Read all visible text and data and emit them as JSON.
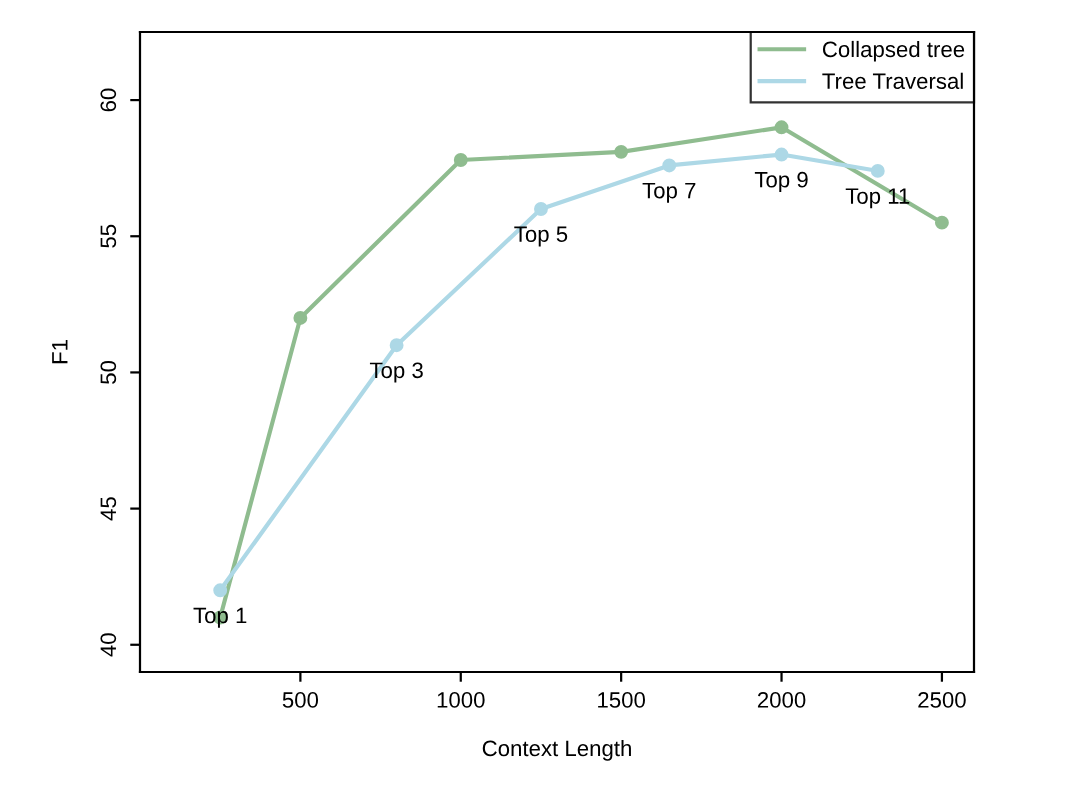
{
  "chart_data": {
    "type": "line",
    "xlabel": "Context Length",
    "ylabel": "F1",
    "xlim": [
      0,
      2600
    ],
    "ylim": [
      39,
      62.5
    ],
    "xticks": [
      500,
      1000,
      1500,
      2000,
      2500
    ],
    "yticks": [
      40,
      45,
      50,
      55,
      60
    ],
    "grid": false,
    "legend": "top right",
    "marker": "circle",
    "line_style": "solid",
    "series": [
      {
        "name": "Collapsed tree",
        "color": "#8fbc8f",
        "x": [
          250,
          500,
          1000,
          1500,
          2000,
          2500
        ],
        "values": [
          41,
          52,
          57.8,
          58.1,
          59,
          55.5
        ]
      },
      {
        "name": "Tree Traversal",
        "color": "#add8e6",
        "x": [
          250,
          800,
          1250,
          1650,
          2000,
          2300
        ],
        "values": [
          42,
          51,
          56,
          57.6,
          58,
          57.4
        ]
      }
    ],
    "annotations": [
      {
        "text": "Top 1",
        "x": 250,
        "y": 42
      },
      {
        "text": "Top 3",
        "x": 800,
        "y": 51
      },
      {
        "text": "Top 5",
        "x": 1250,
        "y": 56
      },
      {
        "text": "Top 7",
        "x": 1650,
        "y": 57.6
      },
      {
        "text": "Top 9",
        "x": 2000,
        "y": 58
      },
      {
        "text": "Top 11",
        "x": 2300,
        "y": 57.4
      }
    ]
  }
}
